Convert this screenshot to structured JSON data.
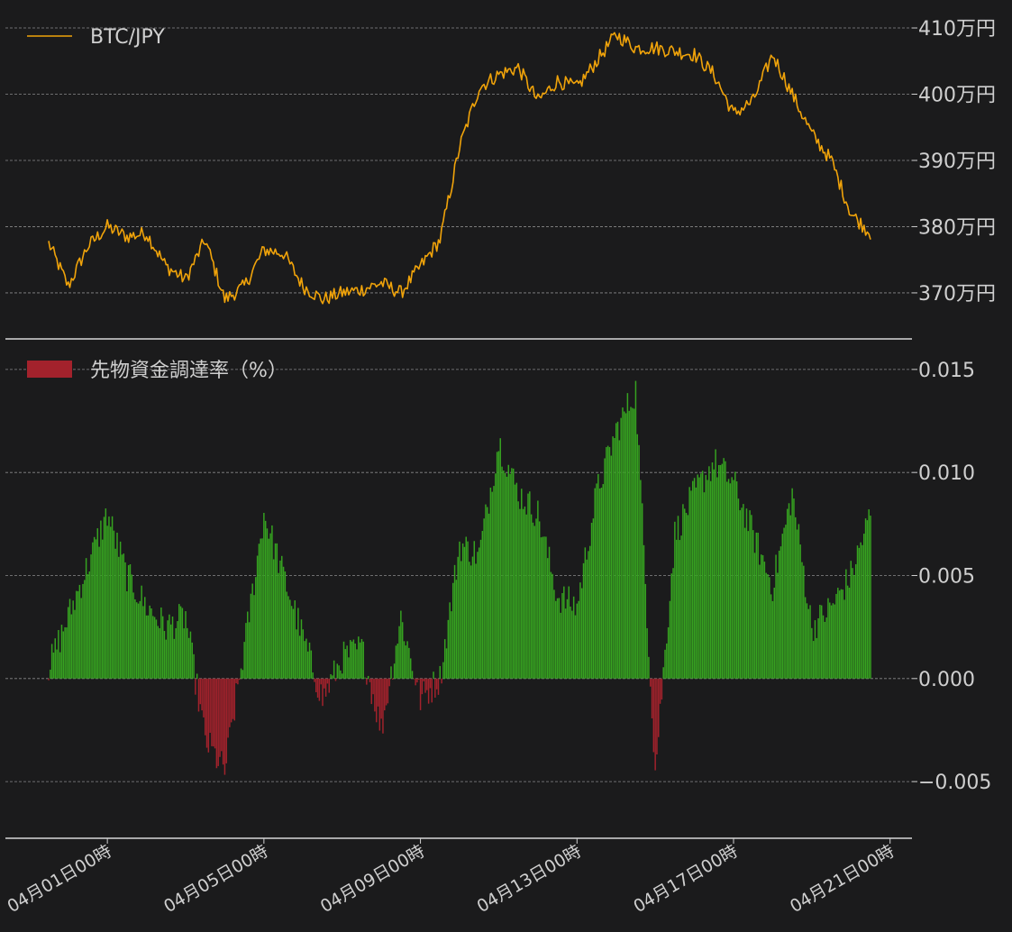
{
  "chart_data": [
    {
      "type": "line",
      "series": [
        {
          "name": "BTC/JPY",
          "color": "#f0a30a"
        }
      ],
      "x_range": [
        "2024-03-30T12:00",
        "2024-04-20T12:00"
      ],
      "x": [
        "2024-03-30T12:00",
        "2024-03-31T00:00",
        "2024-03-31T12:00",
        "2024-04-01T00:00",
        "2024-04-01T12:00",
        "2024-04-02T00:00",
        "2024-04-02T12:00",
        "2024-04-03T00:00",
        "2024-04-03T12:00",
        "2024-04-04T00:00",
        "2024-04-04T12:00",
        "2024-04-05T00:00",
        "2024-04-05T12:00",
        "2024-04-06T00:00",
        "2024-04-06T12:00",
        "2024-04-07T00:00",
        "2024-04-07T12:00",
        "2024-04-08T00:00",
        "2024-04-08T12:00",
        "2024-04-09T00:00",
        "2024-04-09T12:00",
        "2024-04-10T00:00",
        "2024-04-10T12:00",
        "2024-04-11T00:00",
        "2024-04-11T12:00",
        "2024-04-12T00:00",
        "2024-04-12T12:00",
        "2024-04-13T00:00",
        "2024-04-13T12:00",
        "2024-04-14T00:00",
        "2024-04-14T12:00",
        "2024-04-15T00:00",
        "2024-04-15T12:00",
        "2024-04-16T00:00",
        "2024-04-16T12:00",
        "2024-04-17T00:00",
        "2024-04-17T12:00",
        "2024-04-18T00:00",
        "2024-04-18T12:00",
        "2024-04-19T00:00",
        "2024-04-19T12:00",
        "2024-04-20T00:00",
        "2024-04-20T12:00"
      ],
      "values": [
        377.5,
        371.0,
        377.0,
        380.0,
        378.5,
        379.0,
        374.0,
        372.0,
        378.0,
        369.0,
        371.0,
        376.5,
        376.0,
        371.0,
        369.0,
        370.0,
        370.5,
        371.5,
        370.0,
        374.0,
        378.0,
        392.0,
        401.0,
        403.0,
        404.0,
        399.0,
        402.0,
        401.0,
        405.0,
        409.0,
        407.0,
        407.0,
        406.5,
        406.0,
        403.0,
        397.0,
        399.0,
        406.0,
        400.0,
        394.0,
        390.0,
        382.0,
        379.0
      ],
      "y_ticks": [
        "370万円",
        "380万円",
        "390万円",
        "400万円",
        "410万円"
      ],
      "ylim": [
        365.5,
        411.5
      ],
      "grid": true,
      "legend_position": "top-left"
    },
    {
      "type": "bar",
      "series": [
        {
          "name": "先物資金調達率（%）",
          "positive_color": "#36a320",
          "negative_color": "#a3222c"
        }
      ],
      "x_range": [
        "2024-03-30T12:00",
        "2024-04-20T12:00"
      ],
      "x": [
        "2024-03-30T12:00",
        "2024-03-31T00:00",
        "2024-03-31T12:00",
        "2024-04-01T00:00",
        "2024-04-01T12:00",
        "2024-04-02T00:00",
        "2024-04-02T12:00",
        "2024-04-03T00:00",
        "2024-04-03T12:00",
        "2024-04-04T00:00",
        "2024-04-04T12:00",
        "2024-04-05T00:00",
        "2024-04-05T12:00",
        "2024-04-06T00:00",
        "2024-04-06T12:00",
        "2024-04-07T00:00",
        "2024-04-07T12:00",
        "2024-04-08T00:00",
        "2024-04-08T12:00",
        "2024-04-09T00:00",
        "2024-04-09T12:00",
        "2024-04-10T00:00",
        "2024-04-10T12:00",
        "2024-04-11T00:00",
        "2024-04-11T12:00",
        "2024-04-12T00:00",
        "2024-04-12T12:00",
        "2024-04-13T00:00",
        "2024-04-13T12:00",
        "2024-04-14T00:00",
        "2024-04-14T12:00",
        "2024-04-15T00:00",
        "2024-04-15T12:00",
        "2024-04-16T00:00",
        "2024-04-16T12:00",
        "2024-04-17T00:00",
        "2024-04-17T12:00",
        "2024-04-18T00:00",
        "2024-04-18T12:00",
        "2024-04-19T00:00",
        "2024-04-19T12:00",
        "2024-04-20T00:00",
        "2024-04-20T12:00"
      ],
      "values": [
        0.0005,
        0.003,
        0.0055,
        0.008,
        0.005,
        0.0035,
        0.0025,
        0.003,
        -0.003,
        -0.0045,
        0.0015,
        0.008,
        0.005,
        0.002,
        -0.001,
        0.001,
        0.0015,
        -0.0025,
        0.003,
        -0.001,
        0.0,
        0.0065,
        0.006,
        0.0115,
        0.009,
        0.008,
        0.004,
        0.0035,
        0.009,
        0.012,
        0.014,
        -0.0045,
        0.007,
        0.009,
        0.0105,
        0.0095,
        0.007,
        0.0045,
        0.009,
        0.0025,
        0.0035,
        0.005,
        0.008
      ],
      "y_ticks": [
        "−0.005",
        "0.000",
        "0.005",
        "0.010",
        "0.015"
      ],
      "ylim": [
        -0.0067,
        0.0153
      ],
      "grid": true,
      "legend_position": "top-left"
    }
  ],
  "x_tick_labels": [
    "04月01日00時",
    "04月05日00時",
    "04月09日00時",
    "04月13日00時",
    "04月17日00時",
    "04月21日00時"
  ],
  "x_tick_dates": [
    "2024-04-01T00:00",
    "2024-04-05T00:00",
    "2024-04-09T00:00",
    "2024-04-13T00:00",
    "2024-04-17T00:00",
    "2024-04-21T00:00"
  ],
  "colors": {
    "background": "#1b1b1c",
    "grid": "#8a8a8a",
    "text": "#cfcfcf",
    "axis_line": "#d8d8d8"
  }
}
